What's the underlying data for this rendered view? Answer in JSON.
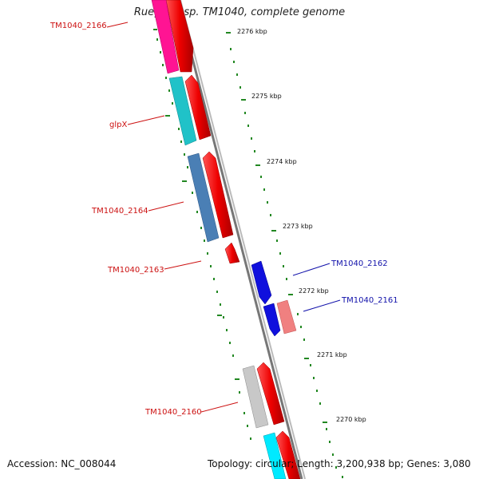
{
  "title": "Ruegeria sp. TM1040, complete genome",
  "footer": {
    "accession": "Accession: NC_008044",
    "summary": "Topology: circular; Length: 3,200,938 bp; Genes: 3,080"
  },
  "ticks": [
    "2276 kbp",
    "2275 kbp",
    "2274 kbp",
    "2273 kbp",
    "2272 kbp",
    "2271 kbp",
    "2270 kbp"
  ],
  "genes": [
    {
      "name": "TM1040_2166",
      "strand": "reverse",
      "color": "#ff1493"
    },
    {
      "name": "glpX",
      "strand": "reverse",
      "color": "#20c2c8"
    },
    {
      "name": "TM1040_2164",
      "strand": "reverse",
      "color": "#4a7fb5"
    },
    {
      "name": "TM1040_2163",
      "strand": "forward",
      "color": "#ee0000"
    },
    {
      "name": "TM1040_2162",
      "strand": "forward",
      "color": "#1010dd"
    },
    {
      "name": "TM1040_2161",
      "strand": "reverse",
      "color": "#f08080"
    },
    {
      "name": "TM1040_2160",
      "strand": "reverse",
      "color": "#c8c8c8"
    }
  ],
  "colors": {
    "cds": "#ee0000",
    "backbone": "#8a8a8a",
    "tick": "#228822",
    "label_red": "#cc1111",
    "label_blue": "#1111aa"
  }
}
